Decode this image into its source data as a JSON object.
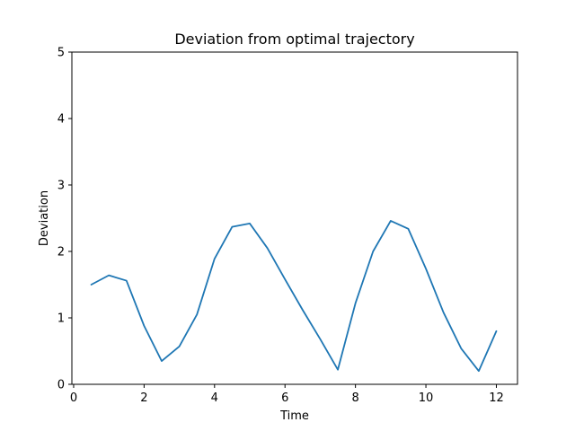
{
  "chart_data": {
    "type": "line",
    "title": "Deviation from optimal trajectory",
    "xlabel": "Time",
    "ylabel": "Deviation",
    "xlim": [
      -0.05,
      12.6
    ],
    "ylim": [
      0,
      5
    ],
    "xticks": [
      "0",
      "2",
      "4",
      "6",
      "8",
      "10",
      "12"
    ],
    "yticks": [
      "0",
      "1",
      "2",
      "3",
      "4",
      "5"
    ],
    "grid": false,
    "legend": "none",
    "series": [
      {
        "color": "#1f77b4",
        "x": [
          0.5,
          1.0,
          1.5,
          2.0,
          2.5,
          3.0,
          3.5,
          4.0,
          4.5,
          5.0,
          5.5,
          6.0,
          6.5,
          7.0,
          7.5,
          8.0,
          8.5,
          9.0,
          9.5,
          10.0,
          10.5,
          11.0,
          11.5,
          12.0
        ],
        "y": [
          1.5,
          1.64,
          1.56,
          0.88,
          0.35,
          0.57,
          1.05,
          1.89,
          2.37,
          2.42,
          2.05,
          1.58,
          1.12,
          0.68,
          0.22,
          1.22,
          2.0,
          2.46,
          2.34,
          1.74,
          1.08,
          0.54,
          0.2,
          0.8
        ]
      }
    ]
  }
}
